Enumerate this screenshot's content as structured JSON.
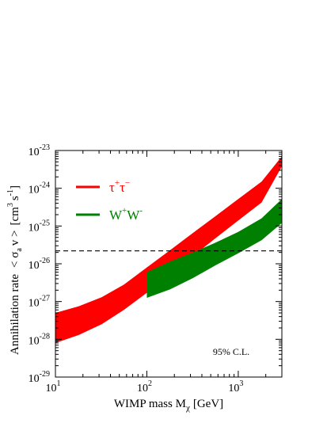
{
  "chart_data": {
    "type": "area",
    "xscale": "log",
    "yscale": "log",
    "xlim": [
      10,
      3000
    ],
    "ylim": [
      1e-29,
      1e-23
    ],
    "xlabel_main": "WIMP mass M",
    "xlabel_sub": "χ",
    "xlabel_unit": "[GeV]",
    "ylabel_main": "Annihilation rate",
    "ylabel_sigma": "< σ",
    "ylabel_sub": "a",
    "ylabel_v": "v >",
    "ylabel_unit": "[cm",
    "ylabel_unit_exp": "3",
    "ylabel_unit_s": "s",
    "ylabel_unit_s_exp": "-1",
    "ylabel_close": "]",
    "x_ticks": [
      {
        "value": 10,
        "base": "10",
        "exp": "1"
      },
      {
        "value": 100,
        "base": "10",
        "exp": "2"
      },
      {
        "value": 1000,
        "base": "10",
        "exp": "3"
      }
    ],
    "y_ticks": [
      {
        "value": 1e-29,
        "base": "10",
        "exp": "-29"
      },
      {
        "value": 1e-28,
        "base": "10",
        "exp": "-28"
      },
      {
        "value": 1e-27,
        "base": "10",
        "exp": "-27"
      },
      {
        "value": 1e-26,
        "base": "10",
        "exp": "-26"
      },
      {
        "value": 1e-25,
        "base": "10",
        "exp": "-25"
      },
      {
        "value": 1e-24,
        "base": "10",
        "exp": "-24"
      },
      {
        "value": 1e-23,
        "base": "10",
        "exp": "-23"
      }
    ],
    "series": [
      {
        "name": "τ⁺τ⁻",
        "label_base": "τ",
        "label_sup1": "+",
        "label_base2": "τ",
        "label_sup2": "−",
        "color": "#ff0000",
        "x": [
          10,
          18,
          32,
          56,
          100,
          180,
          320,
          560,
          1000,
          1800,
          3000
        ],
        "upper": [
          5e-28,
          7.5e-28,
          1.3e-27,
          2.8e-27,
          8e-27,
          2.3e-26,
          6.6e-26,
          1.8e-25,
          5.2e-25,
          1.5e-24,
          7e-24
        ],
        "lower": [
          8e-29,
          1.3e-28,
          2.5e-28,
          6e-28,
          1.7e-27,
          5.4e-27,
          1.6e-26,
          4.7e-26,
          1.4e-25,
          4.2e-25,
          3.8e-24
        ]
      },
      {
        "name": "W⁺W⁻",
        "label_base": "W",
        "label_sup1": "+",
        "label_base2": "W",
        "label_sup2": "-",
        "color": "#008000",
        "x": [
          100,
          180,
          320,
          560,
          1000,
          1800,
          3000
        ],
        "upper": [
          6e-27,
          1.15e-26,
          2e-26,
          3.6e-26,
          7e-26,
          1.6e-25,
          5.2e-25
        ],
        "lower": [
          1.25e-27,
          2.1e-27,
          4.2e-27,
          9e-27,
          1.9e-26,
          4.2e-26,
          1.2e-25
        ]
      }
    ],
    "reference_line": {
      "y": 2.2e-26,
      "style": "dashed"
    },
    "annotation": "95% C.L."
  }
}
